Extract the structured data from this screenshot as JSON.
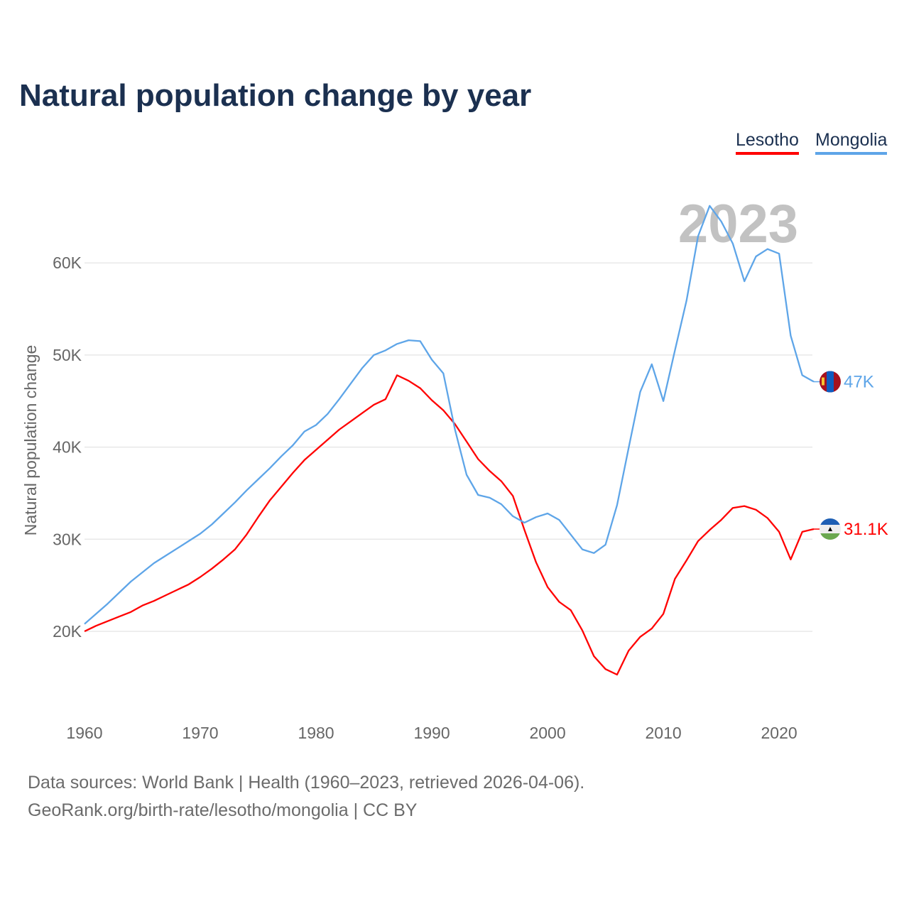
{
  "chart_data": {
    "type": "line",
    "title": "Natural population change by year",
    "xlabel": "",
    "ylabel": "Natural population change",
    "xlim": [
      1960,
      2023
    ],
    "ylim": [
      12,
      68
    ],
    "grid": true,
    "legend_placement": "top-right",
    "x_ticks": [
      1960,
      1970,
      1980,
      1990,
      2000,
      2010,
      2020
    ],
    "x_tick_labels": [
      "1960",
      "1970",
      "1980",
      "1990",
      "2000",
      "2010",
      "2020"
    ],
    "y_ticks": [
      20,
      30,
      40,
      50,
      60
    ],
    "y_tick_labels": [
      "20K",
      "30K",
      "40K",
      "50K",
      "60K"
    ],
    "year_watermark": "2023",
    "units": "thousands",
    "x": [
      1960,
      1961,
      1962,
      1963,
      1964,
      1965,
      1966,
      1967,
      1968,
      1969,
      1970,
      1971,
      1972,
      1973,
      1974,
      1975,
      1976,
      1977,
      1978,
      1979,
      1980,
      1981,
      1982,
      1983,
      1984,
      1985,
      1986,
      1987,
      1988,
      1989,
      1990,
      1991,
      1992,
      1993,
      1994,
      1995,
      1996,
      1997,
      1998,
      1999,
      2000,
      2001,
      2002,
      2003,
      2004,
      2005,
      2006,
      2007,
      2008,
      2009,
      2010,
      2011,
      2012,
      2013,
      2014,
      2015,
      2016,
      2017,
      2018,
      2019,
      2020,
      2021,
      2022,
      2023
    ],
    "series": [
      {
        "name": "Lesotho",
        "color": "#ff0000",
        "end_label": "31.1K",
        "flag": "lesotho-flag",
        "values": [
          20.0,
          20.6,
          21.1,
          21.6,
          22.1,
          22.8,
          23.3,
          23.9,
          24.5,
          25.1,
          25.9,
          26.8,
          27.8,
          28.9,
          30.5,
          32.4,
          34.2,
          35.7,
          37.2,
          38.6,
          39.7,
          40.8,
          41.9,
          42.8,
          43.7,
          44.6,
          45.2,
          47.8,
          47.2,
          46.4,
          45.1,
          44.0,
          42.5,
          40.6,
          38.7,
          37.4,
          36.3,
          34.7,
          31.0,
          27.5,
          24.8,
          23.2,
          22.3,
          20.1,
          17.3,
          15.9,
          15.3,
          17.9,
          19.4,
          20.3,
          21.9,
          25.7,
          27.7,
          29.8,
          31.0,
          32.1,
          33.4,
          33.6,
          33.2,
          32.3,
          30.8,
          27.8,
          30.8,
          31.1
        ]
      },
      {
        "name": "Mongolia",
        "color": "#5ea5e8",
        "end_label": "47K",
        "flag": "mongolia-flag",
        "values": [
          20.8,
          21.9,
          23.0,
          24.2,
          25.4,
          26.4,
          27.4,
          28.2,
          29.0,
          29.8,
          30.6,
          31.6,
          32.8,
          34.0,
          35.3,
          36.5,
          37.7,
          39.0,
          40.2,
          41.7,
          42.4,
          43.6,
          45.2,
          46.9,
          48.6,
          50.0,
          50.5,
          51.2,
          51.6,
          51.5,
          49.5,
          48.0,
          41.9,
          37.0,
          34.8,
          34.5,
          33.8,
          32.5,
          31.8,
          32.4,
          32.8,
          32.1,
          30.5,
          28.9,
          28.5,
          29.4,
          33.7,
          39.9,
          46.0,
          49.0,
          45.0,
          50.5,
          55.9,
          62.9,
          66.2,
          64.5,
          62.1,
          58.0,
          60.7,
          61.5,
          61.0,
          52.1,
          47.8,
          47.1
        ]
      }
    ]
  },
  "footer": {
    "line1": "Data sources: World Bank | Health (1960–2023, retrieved 2026-04-06).",
    "line2": "GeoRank.org/birth-rate/lesotho/mongolia | CC BY"
  }
}
